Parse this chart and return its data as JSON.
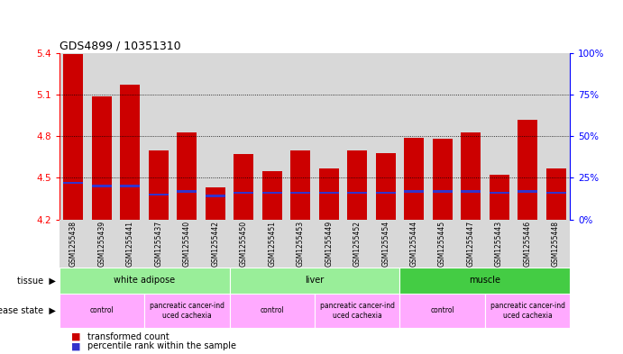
{
  "title": "GDS4899 / 10351310",
  "samples": [
    "GSM1255438",
    "GSM1255439",
    "GSM1255441",
    "GSM1255437",
    "GSM1255440",
    "GSM1255442",
    "GSM1255450",
    "GSM1255451",
    "GSM1255453",
    "GSM1255449",
    "GSM1255452",
    "GSM1255454",
    "GSM1255444",
    "GSM1255445",
    "GSM1255447",
    "GSM1255443",
    "GSM1255446",
    "GSM1255448"
  ],
  "transformed_count": [
    5.39,
    5.09,
    5.17,
    4.7,
    4.83,
    4.43,
    4.67,
    4.55,
    4.7,
    4.57,
    4.7,
    4.68,
    4.79,
    4.78,
    4.83,
    4.52,
    4.92,
    4.57
  ],
  "percentile_rank": [
    22,
    20,
    20,
    15,
    17,
    14,
    16,
    16,
    16,
    16,
    16,
    16,
    17,
    17,
    17,
    16,
    17,
    16
  ],
  "ymin": 4.2,
  "ymax": 5.4,
  "yticks": [
    4.2,
    4.5,
    4.8,
    5.1,
    5.4
  ],
  "right_yticks": [
    0,
    25,
    50,
    75,
    100
  ],
  "bar_color": "#cc0000",
  "blue_color": "#3333cc",
  "tissue_info": [
    {
      "label": "white adipose",
      "start": 0,
      "end": 5,
      "color": "#99ee99"
    },
    {
      "label": "liver",
      "start": 6,
      "end": 11,
      "color": "#99ee99"
    },
    {
      "label": "muscle",
      "start": 12,
      "end": 17,
      "color": "#44cc44"
    }
  ],
  "disease_info": [
    {
      "label": "control",
      "start": 0,
      "end": 2
    },
    {
      "label": "pancreatic cancer-ind\nuced cachexia",
      "start": 3,
      "end": 5
    },
    {
      "label": "control",
      "start": 6,
      "end": 8
    },
    {
      "label": "pancreatic cancer-ind\nuced cachexia",
      "start": 9,
      "end": 11
    },
    {
      "label": "control",
      "start": 12,
      "end": 14
    },
    {
      "label": "pancreatic cancer-ind\nuced cachexia",
      "start": 15,
      "end": 17
    }
  ],
  "disease_color": "#ffaaff",
  "col_bg_color": "#d8d8d8",
  "plot_bg_color": "#ffffff"
}
